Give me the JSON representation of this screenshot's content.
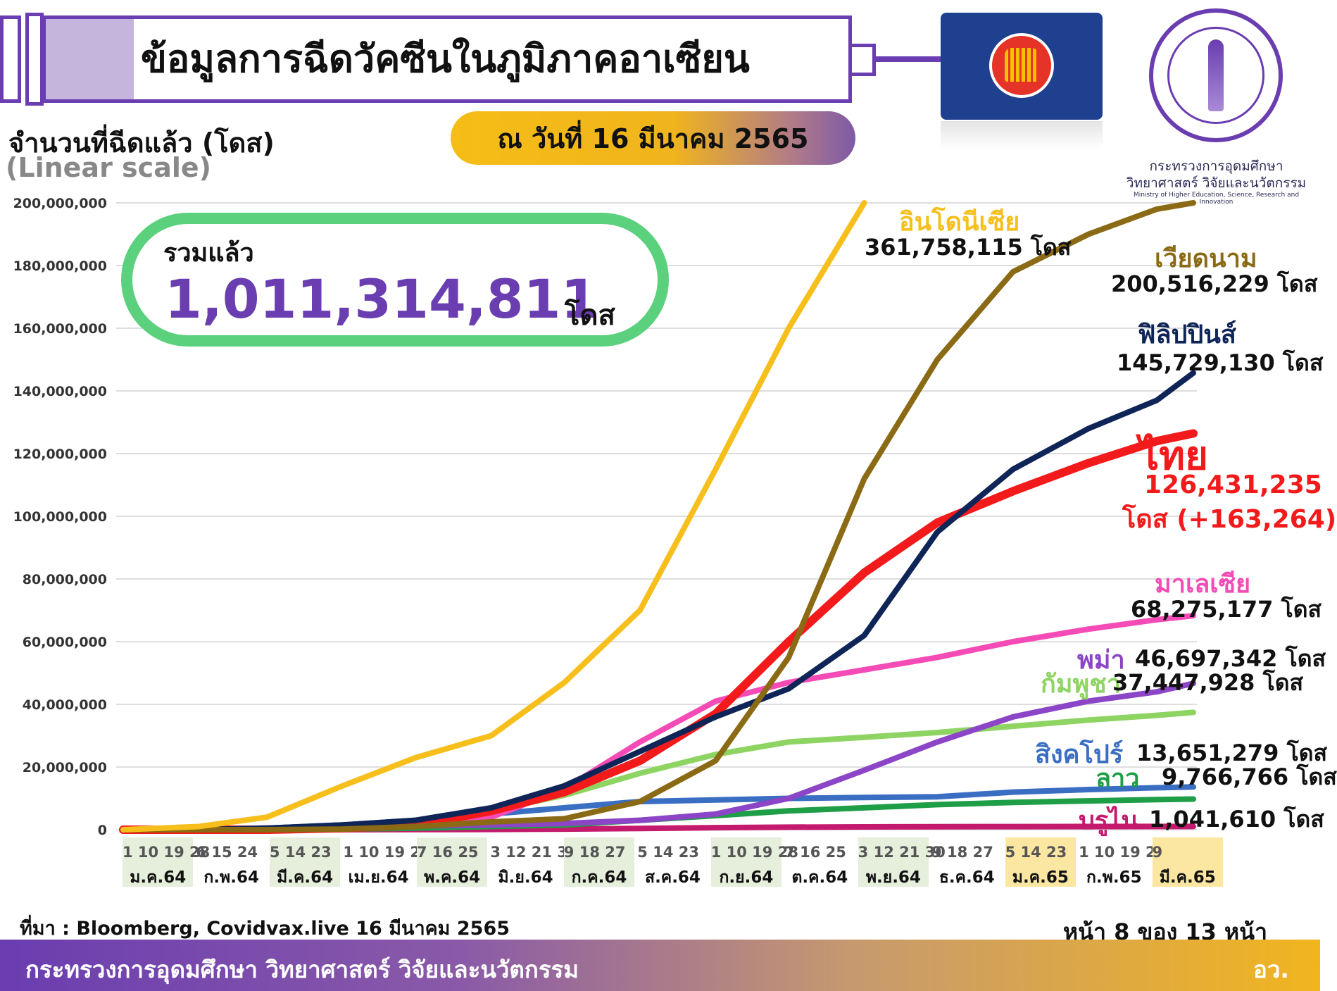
{
  "title": "ข้อมูลการฉีดวัคซีนในภูมิภาคอาเซียน",
  "date_label": "ณ วันที่ 16 มีนาคม 2565",
  "ministry": {
    "name_th_line1": "กระทรวงการอุดมศึกษา",
    "name_th_line2": "วิทยาศาสตร์ วิจัยและนวัตกรรม",
    "name_en": "Ministry of Higher Education, Science, Research and Innovation"
  },
  "y_axis_label": "จำนวนที่ฉีดแล้ว (โดส)",
  "y_scale_label": "(Linear scale)",
  "total": {
    "label": "รวมแล้ว",
    "value": "1,011,314,811",
    "unit": "โดส"
  },
  "source": "ที่มา : Bloomberg, Covidvax.live 16 มีนาคม 2565",
  "page_label": "หน้า 8 ของ 13 หน้า",
  "footer": {
    "text": "กระทรวงการอุดมศึกษา วิทยาศาสตร์ วิจัยและนวัตกรรม",
    "abbr": "อว."
  },
  "colors": {
    "indonesia": "#f6bf1c",
    "vietnam": "#8a6a14",
    "philippines": "#0f2457",
    "thailand": "#f21a1a",
    "malaysia": "#f54bb6",
    "myanmar": "#8b45c6",
    "cambodia": "#8ed462",
    "singapore": "#3a6ec2",
    "laos": "#1e9e46",
    "brunei": "#c41a6e"
  },
  "chart_data": {
    "type": "line",
    "y_range": [
      0,
      200000000
    ],
    "y_ticks": [
      "0",
      "20,000,000",
      "40,000,000",
      "60,000,000",
      "80,000,000",
      "100,000,000",
      "120,000,000",
      "140,000,000",
      "160,000,000",
      "180,000,000",
      "200,000,000"
    ],
    "x_months": [
      {
        "days": "1 10 19 28",
        "month": "ม.ค.64"
      },
      {
        "days": "6 15 24",
        "month": "ก.พ.64"
      },
      {
        "days": "5 14 23",
        "month": "มี.ค.64"
      },
      {
        "days": "1 10 19 28",
        "month": "เม.ย.64"
      },
      {
        "days": "7 16 25",
        "month": "พ.ค.64"
      },
      {
        "days": "3 12 21 30",
        "month": "มิ.ย.64"
      },
      {
        "days": "9 18 27",
        "month": "ก.ค.64"
      },
      {
        "days": "5 14 23",
        "month": "ส.ค.64"
      },
      {
        "days": "1 10 19 28",
        "month": "ก.ย.64"
      },
      {
        "days": "7 16 25",
        "month": "ต.ค.64"
      },
      {
        "days": "3 12 21 30",
        "month": "พ.ย.64"
      },
      {
        "days": "9 18 27",
        "month": "ธ.ค.64"
      },
      {
        "days": "5 14 23",
        "month": "ม.ค.65"
      },
      {
        "days": "1 10 19 28",
        "month": "ก.พ.65"
      },
      {
        "days": "9",
        "month": "มี.ค.65"
      }
    ],
    "x": [
      "2021-01-01",
      "2021-02-01",
      "2021-03-01",
      "2021-04-01",
      "2021-05-01",
      "2021-06-01",
      "2021-07-01",
      "2021-08-01",
      "2021-09-01",
      "2021-10-01",
      "2021-11-01",
      "2021-12-01",
      "2022-01-01",
      "2022-02-01",
      "2022-03-01",
      "2022-03-16"
    ],
    "series": [
      {
        "key": "indonesia",
        "name": "อินโดนีเซีย",
        "final": "361,758,115 โดส",
        "values": [
          0,
          1000000,
          4000000,
          14000000,
          23000000,
          30000000,
          47000000,
          70000000,
          115000000,
          160000000,
          200000000,
          null,
          null,
          null,
          null,
          null
        ]
      },
      {
        "key": "vietnam",
        "name": "เวียดนาม",
        "final": "200,516,229 โดส",
        "values": [
          0,
          0,
          0,
          200000,
          1000000,
          2500000,
          3500000,
          9000000,
          22000000,
          55000000,
          112000000,
          150000000,
          178000000,
          190000000,
          198000000,
          200516229
        ]
      },
      {
        "key": "philippines",
        "name": "ฟิลิปปินส์",
        "final": "145,729,130 โดส",
        "values": [
          0,
          0,
          500000,
          1500000,
          3000000,
          7000000,
          14000000,
          25000000,
          36000000,
          45000000,
          62000000,
          95000000,
          115000000,
          128000000,
          137000000,
          145729130
        ]
      },
      {
        "key": "thailand",
        "name": "ไทย",
        "final": "126,431,235",
        "final_line2": "โดส (+163,264)",
        "values": [
          0,
          0,
          0,
          500000,
          1500000,
          6000000,
          12000000,
          22000000,
          37000000,
          60000000,
          82000000,
          98000000,
          108000000,
          117000000,
          124000000,
          126431235
        ]
      },
      {
        "key": "malaysia",
        "name": "มาเลเซีย",
        "final": "68,275,177 โดส",
        "values": [
          0,
          0,
          400000,
          1000000,
          2000000,
          4000000,
          13000000,
          28000000,
          41000000,
          47000000,
          51000000,
          55000000,
          60000000,
          64000000,
          67000000,
          68275177
        ]
      },
      {
        "key": "myanmar",
        "name": "พม่า",
        "final": "46,697,342 โดส",
        "values": [
          0,
          200000,
          500000,
          800000,
          1200000,
          1500000,
          2000000,
          3000000,
          5000000,
          10000000,
          19000000,
          28000000,
          36000000,
          41000000,
          44000000,
          46697342
        ]
      },
      {
        "key": "cambodia",
        "name": "กัมพูชา",
        "final": "37,447,928 โดส",
        "values": [
          0,
          100000,
          300000,
          1000000,
          3000000,
          6000000,
          11000000,
          18000000,
          24000000,
          28000000,
          29500000,
          31000000,
          33000000,
          35000000,
          36500000,
          37447928
        ]
      },
      {
        "key": "singapore",
        "name": "สิงคโปร์",
        "final": "13,651,279 โดส",
        "values": [
          0,
          100000,
          500000,
          1500000,
          3000000,
          5000000,
          7000000,
          9000000,
          9500000,
          10000000,
          10300000,
          10500000,
          12000000,
          12800000,
          13400000,
          13651279
        ]
      },
      {
        "key": "laos",
        "name": "ลาว",
        "final": "9,766,766 โดส",
        "values": [
          0,
          0,
          100000,
          200000,
          500000,
          1000000,
          1500000,
          3000000,
          4500000,
          6000000,
          7000000,
          8000000,
          8700000,
          9200000,
          9600000,
          9766766
        ]
      },
      {
        "key": "brunei",
        "name": "บรูไน",
        "final": "1,041,610 โดส",
        "values": [
          0,
          0,
          0,
          20000,
          50000,
          100000,
          200000,
          400000,
          650000,
          800000,
          900000,
          950000,
          990000,
          1010000,
          1030000,
          1041610
        ]
      }
    ]
  }
}
